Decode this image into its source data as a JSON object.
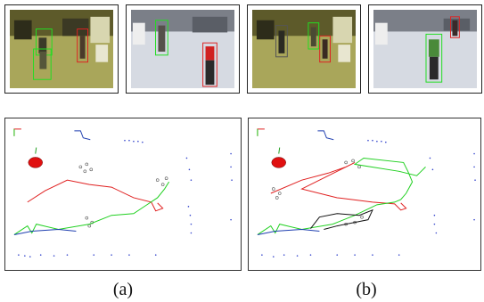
{
  "figure": {
    "captions": {
      "a": "(a)",
      "b": "(b)"
    },
    "photos": [
      {
        "id": "photo-1",
        "scene": "yellowish-indoor-lab"
      },
      {
        "id": "photo-2",
        "scene": "bluish-indoor-hall"
      },
      {
        "id": "photo-3",
        "scene": "yellowish-indoor-lab"
      },
      {
        "id": "photo-4",
        "scene": "bluish-indoor-hall"
      }
    ],
    "colors": {
      "trajectory_red": "#e02020",
      "trajectory_green": "#20d020",
      "trajectory_blue": "#1f3fb0",
      "trajectory_black": "#111111",
      "wall_points": "#3344cc",
      "robot_marker": "#e01010",
      "box_green": "#22dd22",
      "box_red": "#dd2222"
    }
  }
}
